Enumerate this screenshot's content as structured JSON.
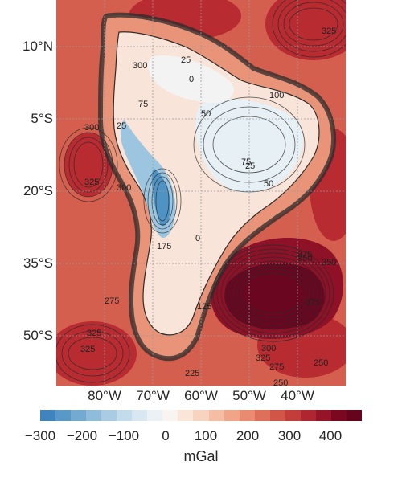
{
  "map": {
    "latitude_labels": [
      "10°N",
      "5°S",
      "20°S",
      "35°S",
      "50°S"
    ],
    "longitude_labels": [
      "80°W",
      "70°W",
      "60°W",
      "50°W",
      "40°W"
    ],
    "contour_labels": [
      "25",
      "0",
      "25",
      "50",
      "75",
      "100",
      "25",
      "50",
      "0",
      "75",
      "125",
      "175",
      "275",
      "300",
      "325",
      "350",
      "375",
      "325",
      "300",
      "275",
      "325",
      "250",
      "300",
      "325",
      "375",
      "350",
      "225",
      "250",
      "300",
      "325"
    ],
    "colors": {
      "ocean": "#d55f4e",
      "ocean_dark": "#b72b31",
      "ridge": "#ca4741",
      "land_low": "#f8e4d8",
      "land_high": "#e7f0f5",
      "andes": "#4e93c4",
      "andes_light": "#9cc6e0",
      "basin": "#6a0620",
      "contour": "#2b2b2b",
      "grid": "#9a9a9a"
    }
  },
  "colorbar": {
    "tick_labels": [
      "−300",
      "−200",
      "−100",
      "0",
      "100",
      "200",
      "300",
      "400"
    ],
    "unit": "mGal",
    "colors": [
      "#3f85bd",
      "#5899c8",
      "#73aad2",
      "#8fbcdb",
      "#a9cce4",
      "#c2dcec",
      "#d8e7f1",
      "#ebf1f4",
      "#f7f4f2",
      "#fbe5d9",
      "#f8d3c0",
      "#f5bda4",
      "#f0a589",
      "#e88b70",
      "#de705a",
      "#d25648",
      "#c33d3a",
      "#b02630",
      "#951427",
      "#790820",
      "#64051b"
    ]
  }
}
